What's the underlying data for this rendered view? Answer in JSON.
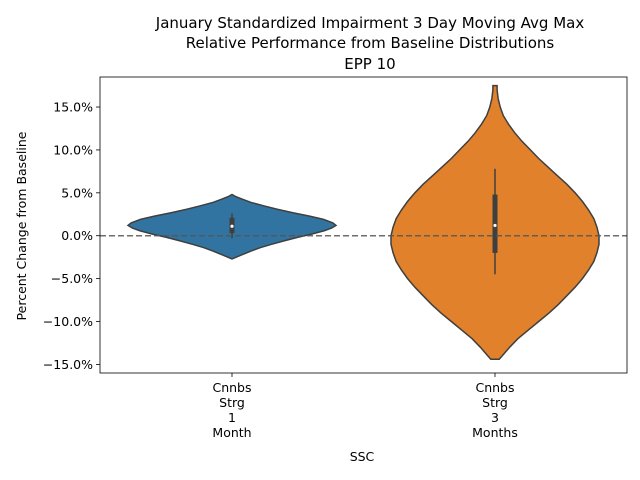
{
  "chart_data": {
    "type": "violin",
    "title_lines": [
      "January Standardized Impairment 3 Day Moving Avg Max",
      "Relative Performance from Baseline Distributions",
      "EPP 10"
    ],
    "xlabel": "SSC",
    "ylabel": "Percent Change from Baseline",
    "ylim": [
      -0.16,
      0.185
    ],
    "yticks": [
      -0.15,
      -0.1,
      -0.05,
      0.0,
      0.05,
      0.1,
      0.15
    ],
    "ytick_labels": [
      "−15.0%",
      "−10.0%",
      "−5.0%",
      "0.0%",
      "5.0%",
      "10.0%",
      "15.0%"
    ],
    "reference_line": {
      "y": 0.0,
      "style": "dashed"
    },
    "categories": [
      {
        "label_lines": [
          "Cnnbs",
          "Strg",
          "1",
          "Month"
        ],
        "color": "#3274a1",
        "min": -0.027,
        "max": 0.048,
        "whisker_low": -0.003,
        "whisker_high": 0.026,
        "q1": 0.003,
        "q3": 0.021,
        "median": 0.011,
        "density": [
          [
            -0.027,
            0.0
          ],
          [
            -0.025,
            0.04
          ],
          [
            -0.022,
            0.1
          ],
          [
            -0.018,
            0.18
          ],
          [
            -0.014,
            0.27
          ],
          [
            -0.01,
            0.38
          ],
          [
            -0.006,
            0.5
          ],
          [
            -0.002,
            0.63
          ],
          [
            0.002,
            0.77
          ],
          [
            0.006,
            0.89
          ],
          [
            0.009,
            0.96
          ],
          [
            0.012,
            1.0
          ],
          [
            0.015,
            0.97
          ],
          [
            0.019,
            0.88
          ],
          [
            0.023,
            0.74
          ],
          [
            0.027,
            0.58
          ],
          [
            0.031,
            0.43
          ],
          [
            0.035,
            0.3
          ],
          [
            0.039,
            0.18
          ],
          [
            0.043,
            0.09
          ],
          [
            0.046,
            0.03
          ],
          [
            0.048,
            0.0
          ]
        ]
      },
      {
        "label_lines": [
          "Cnnbs",
          "Strg",
          "3",
          "Months"
        ],
        "color": "#e1812c",
        "min": -0.144,
        "max": 0.175,
        "whisker_low": -0.045,
        "whisker_high": 0.078,
        "q1": -0.02,
        "q3": 0.048,
        "median": 0.012,
        "density": [
          [
            -0.144,
            0.04
          ],
          [
            -0.14,
            0.07
          ],
          [
            -0.13,
            0.14
          ],
          [
            -0.12,
            0.22
          ],
          [
            -0.11,
            0.32
          ],
          [
            -0.1,
            0.42
          ],
          [
            -0.09,
            0.52
          ],
          [
            -0.08,
            0.61
          ],
          [
            -0.07,
            0.69
          ],
          [
            -0.06,
            0.77
          ],
          [
            -0.05,
            0.84
          ],
          [
            -0.04,
            0.9
          ],
          [
            -0.03,
            0.95
          ],
          [
            -0.02,
            0.98
          ],
          [
            -0.01,
            1.0
          ],
          [
            0.0,
            1.0
          ],
          [
            0.01,
            0.98
          ],
          [
            0.02,
            0.95
          ],
          [
            0.03,
            0.9
          ],
          [
            0.04,
            0.84
          ],
          [
            0.05,
            0.77
          ],
          [
            0.06,
            0.69
          ],
          [
            0.07,
            0.6
          ],
          [
            0.08,
            0.51
          ],
          [
            0.09,
            0.42
          ],
          [
            0.1,
            0.34
          ],
          [
            0.11,
            0.26
          ],
          [
            0.12,
            0.19
          ],
          [
            0.13,
            0.13
          ],
          [
            0.14,
            0.08
          ],
          [
            0.15,
            0.05
          ],
          [
            0.16,
            0.03
          ],
          [
            0.17,
            0.02
          ],
          [
            0.175,
            0.02
          ]
        ]
      }
    ]
  }
}
